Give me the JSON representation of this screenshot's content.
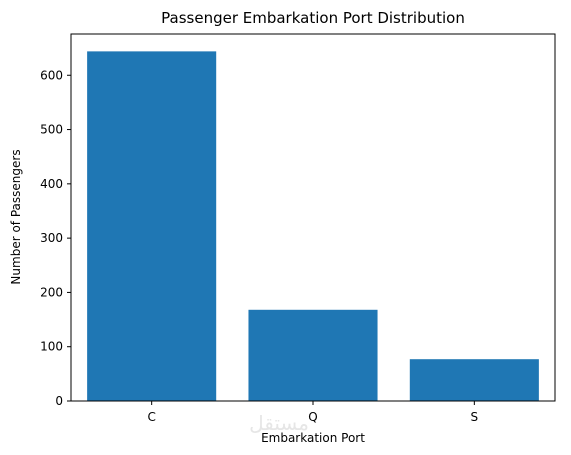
{
  "chart_data": {
    "type": "bar",
    "title": "Passenger Embarkation Port Distribution",
    "xlabel": "Embarkation Port",
    "ylabel": "Number of Passengers",
    "categories": [
      "C",
      "Q",
      "S"
    ],
    "values": [
      644,
      168,
      77
    ],
    "ylim": [
      0,
      676
    ],
    "yticks": [
      0,
      100,
      200,
      300,
      400,
      500,
      600
    ],
    "grid": false,
    "colors": {
      "bar": "#1f77b4",
      "axis": "#000000",
      "background": "#ffffff"
    }
  },
  "watermark": {
    "text": "مستقل"
  }
}
